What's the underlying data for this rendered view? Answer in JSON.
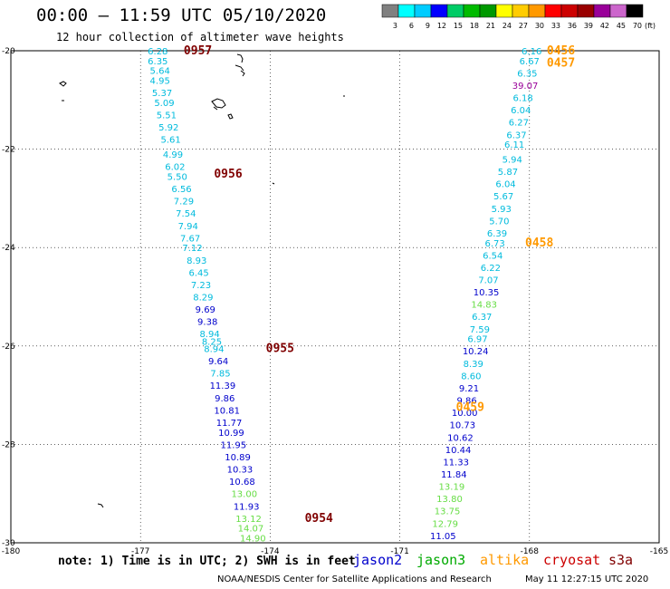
{
  "header": {
    "title": "00:00 – 11:59 UTC 05/10/2020",
    "subtitle": "12 hour collection of altimeter wave heights"
  },
  "footer": {
    "note": "note:  1) Time is in UTC;  2) SWH is in feet",
    "credit": "NOAA/NESDIS Center for Satellite Applications and Research",
    "timestamp": "May 11 12:27:15 UTC 2020"
  },
  "missions": [
    {
      "name": "jason2",
      "color": "#0000cc"
    },
    {
      "name": "jason3",
      "color": "#00aa00"
    },
    {
      "name": "altika",
      "color": "#ff9900"
    },
    {
      "name": "cryosat",
      "color": "#cc0000"
    },
    {
      "name": "s3a",
      "color": "#800000"
    }
  ],
  "legend": {
    "unit": "(ft)",
    "levels": [
      {
        "label": "3",
        "color": "#808080"
      },
      {
        "label": "6",
        "color": "#00ffff"
      },
      {
        "label": "9",
        "color": "#00ccff"
      },
      {
        "label": "12",
        "color": "#0000ff"
      },
      {
        "label": "15",
        "color": "#00cc66"
      },
      {
        "label": "18",
        "color": "#00bb00"
      },
      {
        "label": "21",
        "color": "#009900"
      },
      {
        "label": "24",
        "color": "#ffff00"
      },
      {
        "label": "27",
        "color": "#ffcc00"
      },
      {
        "label": "30",
        "color": "#ff9900"
      },
      {
        "label": "33",
        "color": "#ff0000"
      },
      {
        "label": "36",
        "color": "#cc0000"
      },
      {
        "label": "39",
        "color": "#990000"
      },
      {
        "label": "42",
        "color": "#990099"
      },
      {
        "label": "45",
        "color": "#cc66cc"
      },
      {
        "label": "70",
        "color": "#000000"
      }
    ]
  },
  "chart_data": {
    "type": "scatter",
    "xlim": [
      -180,
      -165
    ],
    "ylim": [
      -30,
      -20
    ],
    "x_ticks": [
      "-180",
      "-177",
      "-174",
      "-171",
      "-168",
      "-165"
    ],
    "y_ticks": [
      "-20",
      "-22",
      "-24",
      "-26",
      "-28",
      "-30"
    ],
    "time_labels": [
      {
        "label": "0957",
        "lon": -176.0,
        "lat": -20.0,
        "color": "#800000"
      },
      {
        "label": "0956",
        "lon": -175.3,
        "lat": -22.5,
        "color": "#800000"
      },
      {
        "label": "0955",
        "lon": -174.1,
        "lat": -26.05,
        "color": "#800000"
      },
      {
        "label": "0954",
        "lon": -173.2,
        "lat": -29.5,
        "color": "#800000"
      },
      {
        "label": "0456",
        "lon": -167.6,
        "lat": -20.0,
        "color": "#ff9900"
      },
      {
        "label": "0457",
        "lon": -167.6,
        "lat": -20.25,
        "color": "#ff9900"
      },
      {
        "label": "0458",
        "lon": -168.1,
        "lat": -23.9,
        "color": "#ff9900"
      },
      {
        "label": "0459",
        "lon": -169.7,
        "lat": -27.25,
        "color": "#ff9900"
      }
    ],
    "series": [
      {
        "name": "s3a",
        "points": [
          {
            "lon": -176.6,
            "lat": -20.0,
            "swh": "6.28",
            "color": "#00bbdd"
          },
          {
            "lon": -176.6,
            "lat": -20.2,
            "swh": "6.35",
            "color": "#00bbdd"
          },
          {
            "lon": -176.55,
            "lat": -20.4,
            "swh": "5.64",
            "color": "#00bbdd"
          },
          {
            "lon": -176.55,
            "lat": -20.6,
            "swh": "4.95",
            "color": "#00bbdd"
          },
          {
            "lon": -176.5,
            "lat": -20.85,
            "swh": "5.37",
            "color": "#00bbdd"
          },
          {
            "lon": -176.45,
            "lat": -21.05,
            "swh": "5.09",
            "color": "#00bbdd"
          },
          {
            "lon": -176.4,
            "lat": -21.3,
            "swh": "5.51",
            "color": "#00bbdd"
          },
          {
            "lon": -176.35,
            "lat": -21.55,
            "swh": "5.92",
            "color": "#00bbdd"
          },
          {
            "lon": -176.3,
            "lat": -21.8,
            "swh": "5.61",
            "color": "#00bbdd"
          },
          {
            "lon": -176.25,
            "lat": -22.1,
            "swh": "4.99",
            "color": "#00bbdd"
          },
          {
            "lon": -176.2,
            "lat": -22.35,
            "swh": "6.02",
            "color": "#00bbdd"
          },
          {
            "lon": -176.15,
            "lat": -22.55,
            "swh": "5.50",
            "color": "#00bbdd"
          },
          {
            "lon": -176.05,
            "lat": -22.8,
            "swh": "6.56",
            "color": "#00bbdd"
          },
          {
            "lon": -176.0,
            "lat": -23.05,
            "swh": "7.29",
            "color": "#00bbdd"
          },
          {
            "lon": -175.95,
            "lat": -23.3,
            "swh": "7.54",
            "color": "#00bbdd"
          },
          {
            "lon": -175.9,
            "lat": -23.55,
            "swh": "7.94",
            "color": "#00bbdd"
          },
          {
            "lon": -175.85,
            "lat": -23.8,
            "swh": "7.67",
            "color": "#00bbdd"
          },
          {
            "lon": -175.8,
            "lat": -24.0,
            "swh": "7.12",
            "color": "#00bbdd"
          },
          {
            "lon": -175.7,
            "lat": -24.25,
            "swh": "8.93",
            "color": "#00bbdd"
          },
          {
            "lon": -175.65,
            "lat": -24.5,
            "swh": "6.45",
            "color": "#00bbdd"
          },
          {
            "lon": -175.6,
            "lat": -24.75,
            "swh": "7.23",
            "color": "#00bbdd"
          },
          {
            "lon": -175.55,
            "lat": -25.0,
            "swh": "8.29",
            "color": "#00bbdd"
          },
          {
            "lon": -175.5,
            "lat": -25.25,
            "swh": "9.69",
            "color": "#0000cc"
          },
          {
            "lon": -175.45,
            "lat": -25.5,
            "swh": "9.38",
            "color": "#0000cc"
          },
          {
            "lon": -175.4,
            "lat": -25.75,
            "swh": "8.94",
            "color": "#00bbdd"
          },
          {
            "lon": -175.35,
            "lat": -25.9,
            "swh": "8.25",
            "color": "#00bbdd"
          },
          {
            "lon": -175.3,
            "lat": -26.05,
            "swh": "8.94",
            "color": "#00bbdd"
          },
          {
            "lon": -175.2,
            "lat": -26.3,
            "swh": "9.64",
            "color": "#0000cc"
          },
          {
            "lon": -175.15,
            "lat": -26.55,
            "swh": "7.85",
            "color": "#00bbdd"
          },
          {
            "lon": -175.1,
            "lat": -26.8,
            "swh": "11.39",
            "color": "#0000cc"
          },
          {
            "lon": -175.05,
            "lat": -27.05,
            "swh": "9.86",
            "color": "#0000cc"
          },
          {
            "lon": -175.0,
            "lat": -27.3,
            "swh": "10.81",
            "color": "#0000cc"
          },
          {
            "lon": -174.95,
            "lat": -27.55,
            "swh": "11.77",
            "color": "#0000cc"
          },
          {
            "lon": -174.9,
            "lat": -27.75,
            "swh": "10.99",
            "color": "#0000cc"
          },
          {
            "lon": -174.85,
            "lat": -28.0,
            "swh": "11.95",
            "color": "#0000cc"
          },
          {
            "lon": -174.75,
            "lat": -28.25,
            "swh": "10.89",
            "color": "#0000cc"
          },
          {
            "lon": -174.7,
            "lat": -28.5,
            "swh": "10.33",
            "color": "#0000cc"
          },
          {
            "lon": -174.65,
            "lat": -28.75,
            "swh": "10.68",
            "color": "#0000cc"
          },
          {
            "lon": -174.6,
            "lat": -29.0,
            "swh": "13.00",
            "color": "#66dd44"
          },
          {
            "lon": -174.55,
            "lat": -29.25,
            "swh": "11.93",
            "color": "#0000cc"
          },
          {
            "lon": -174.5,
            "lat": -29.5,
            "swh": "13.12",
            "color": "#66dd44"
          },
          {
            "lon": -174.45,
            "lat": -29.7,
            "swh": "14.07",
            "color": "#66dd44"
          },
          {
            "lon": -174.4,
            "lat": -29.9,
            "swh": "14.90",
            "color": "#66dd44"
          }
        ]
      },
      {
        "name": "altika",
        "points": [
          {
            "lon": -167.95,
            "lat": -20.0,
            "swh": "6.16",
            "color": "#00bbdd"
          },
          {
            "lon": -168.0,
            "lat": -20.2,
            "swh": "6.67",
            "color": "#00bbdd"
          },
          {
            "lon": -168.05,
            "lat": -20.45,
            "swh": "6.35",
            "color": "#00bbdd"
          },
          {
            "lon": -168.1,
            "lat": -20.7,
            "swh": "39.07",
            "color": "#990099"
          },
          {
            "lon": -168.15,
            "lat": -20.95,
            "swh": "6.18",
            "color": "#00bbdd"
          },
          {
            "lon": -168.2,
            "lat": -21.2,
            "swh": "6.04",
            "color": "#00bbdd"
          },
          {
            "lon": -168.25,
            "lat": -21.45,
            "swh": "6.27",
            "color": "#00bbdd"
          },
          {
            "lon": -168.3,
            "lat": -21.7,
            "swh": "6.37",
            "color": "#00bbdd"
          },
          {
            "lon": -168.35,
            "lat": -21.9,
            "swh": "6.11",
            "color": "#00bbdd"
          },
          {
            "lon": -168.4,
            "lat": -22.2,
            "swh": "5.94",
            "color": "#00bbdd"
          },
          {
            "lon": -168.5,
            "lat": -22.45,
            "swh": "5.87",
            "color": "#00bbdd"
          },
          {
            "lon": -168.55,
            "lat": -22.7,
            "swh": "6.04",
            "color": "#00bbdd"
          },
          {
            "lon": -168.6,
            "lat": -22.95,
            "swh": "5.67",
            "color": "#00bbdd"
          },
          {
            "lon": -168.65,
            "lat": -23.2,
            "swh": "5.93",
            "color": "#00bbdd"
          },
          {
            "lon": -168.7,
            "lat": -23.45,
            "swh": "5.70",
            "color": "#00bbdd"
          },
          {
            "lon": -168.75,
            "lat": -23.7,
            "swh": "6.39",
            "color": "#00bbdd"
          },
          {
            "lon": -168.8,
            "lat": -23.9,
            "swh": "6.73",
            "color": "#00bbdd"
          },
          {
            "lon": -168.85,
            "lat": -24.15,
            "swh": "6.54",
            "color": "#00bbdd"
          },
          {
            "lon": -168.9,
            "lat": -24.4,
            "swh": "6.22",
            "color": "#00bbdd"
          },
          {
            "lon": -168.95,
            "lat": -24.65,
            "swh": "7.07",
            "color": "#00bbdd"
          },
          {
            "lon": -169.0,
            "lat": -24.9,
            "swh": "10.35",
            "color": "#0000cc"
          },
          {
            "lon": -169.05,
            "lat": -25.15,
            "swh": "14.83",
            "color": "#66dd44"
          },
          {
            "lon": -169.1,
            "lat": -25.4,
            "swh": "6.37",
            "color": "#00bbdd"
          },
          {
            "lon": -169.15,
            "lat": -25.65,
            "swh": "7.59",
            "color": "#00bbdd"
          },
          {
            "lon": -169.2,
            "lat": -25.85,
            "swh": "6.97",
            "color": "#00bbdd"
          },
          {
            "lon": -169.25,
            "lat": -26.1,
            "swh": "10.24",
            "color": "#0000cc"
          },
          {
            "lon": -169.3,
            "lat": -26.35,
            "swh": "8.39",
            "color": "#00bbdd"
          },
          {
            "lon": -169.35,
            "lat": -26.6,
            "swh": "8.60",
            "color": "#00bbdd"
          },
          {
            "lon": -169.4,
            "lat": -26.85,
            "swh": "9.21",
            "color": "#0000cc"
          },
          {
            "lon": -169.45,
            "lat": -27.1,
            "swh": "9.86",
            "color": "#0000cc"
          },
          {
            "lon": -169.5,
            "lat": -27.35,
            "swh": "10.00",
            "color": "#0000cc"
          },
          {
            "lon": -169.55,
            "lat": -27.6,
            "swh": "10.73",
            "color": "#0000cc"
          },
          {
            "lon": -169.6,
            "lat": -27.85,
            "swh": "10.62",
            "color": "#0000cc"
          },
          {
            "lon": -169.65,
            "lat": -28.1,
            "swh": "10.44",
            "color": "#0000cc"
          },
          {
            "lon": -169.7,
            "lat": -28.35,
            "swh": "11.33",
            "color": "#0000cc"
          },
          {
            "lon": -169.75,
            "lat": -28.6,
            "swh": "11.84",
            "color": "#0000cc"
          },
          {
            "lon": -169.8,
            "lat": -28.85,
            "swh": "13.19",
            "color": "#66dd44"
          },
          {
            "lon": -169.85,
            "lat": -29.1,
            "swh": "13.80",
            "color": "#66dd44"
          },
          {
            "lon": -169.9,
            "lat": -29.35,
            "swh": "13.75",
            "color": "#66dd44"
          },
          {
            "lon": -169.95,
            "lat": -29.6,
            "swh": "12.79",
            "color": "#66dd44"
          },
          {
            "lon": -170.0,
            "lat": -29.85,
            "swh": "11.05",
            "color": "#0000cc"
          }
        ]
      }
    ]
  }
}
